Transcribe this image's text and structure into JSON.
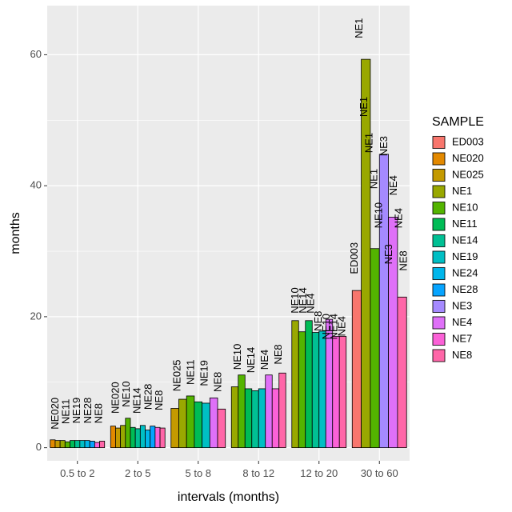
{
  "chart_data": {
    "type": "bar",
    "xlabel": "intervals (months)",
    "ylabel": "months",
    "ylim": [
      -2,
      67.5
    ],
    "y_ticks": [
      0,
      20,
      40,
      60
    ],
    "grid": true,
    "legend_placement": "right",
    "legend_title": "SAMPLE",
    "samples": [
      {
        "name": "ED003",
        "color": "#F8766D"
      },
      {
        "name": "NE020",
        "color": "#E38900"
      },
      {
        "name": "NE025",
        "color": "#C49A00"
      },
      {
        "name": "NE1",
        "color": "#99A800"
      },
      {
        "name": "NE10",
        "color": "#53B400"
      },
      {
        "name": "NE11",
        "color": "#00BC56"
      },
      {
        "name": "NE14",
        "color": "#00C094"
      },
      {
        "name": "NE19",
        "color": "#00BFC4"
      },
      {
        "name": "NE24",
        "color": "#00B6EB"
      },
      {
        "name": "NE28",
        "color": "#06A4FF"
      },
      {
        "name": "NE3",
        "color": "#A58AFF"
      },
      {
        "name": "NE4",
        "color": "#DF70F8"
      },
      {
        "name": "NE7",
        "color": "#FB61D7"
      },
      {
        "name": "NE8",
        "color": "#FF66A8"
      }
    ],
    "categories": [
      {
        "label": "0.5 to 2",
        "bars": [
          {
            "sample": "NE020",
            "value": 1.2
          },
          {
            "sample": "NE025",
            "value": 1.1
          },
          {
            "sample": "NE1",
            "value": 1.1
          },
          {
            "sample": "NE10",
            "value": 0.9
          },
          {
            "sample": "NE11",
            "value": 1.1
          },
          {
            "sample": "NE14",
            "value": 1.1
          },
          {
            "sample": "NE19",
            "value": 1.1
          },
          {
            "sample": "NE24",
            "value": 1.1
          },
          {
            "sample": "NE28",
            "value": 1.0
          },
          {
            "sample": "NE7",
            "value": 0.8
          },
          {
            "sample": "NE8",
            "value": 1.0
          }
        ],
        "labels": [
          {
            "text": "NE020",
            "value": 2.8
          },
          {
            "text": "NE11",
            "value": 3.6
          },
          {
            "text": "NE19",
            "value": 3.7
          },
          {
            "text": "NE28",
            "value": 3.7
          },
          {
            "text": "NE8",
            "value": 3.7
          }
        ]
      },
      {
        "label": "2 to 5",
        "bars": [
          {
            "sample": "NE020",
            "value": 3.3
          },
          {
            "sample": "NE025",
            "value": 3.0
          },
          {
            "sample": "NE1",
            "value": 3.4
          },
          {
            "sample": "NE10",
            "value": 4.5
          },
          {
            "sample": "NE11",
            "value": 3.1
          },
          {
            "sample": "NE14",
            "value": 2.9
          },
          {
            "sample": "NE19",
            "value": 3.4
          },
          {
            "sample": "NE24",
            "value": 2.7
          },
          {
            "sample": "NE28",
            "value": 3.3
          },
          {
            "sample": "NE7",
            "value": 3.1
          },
          {
            "sample": "NE8",
            "value": 3.0
          }
        ],
        "labels": [
          {
            "text": "NE020",
            "value": 5.2
          },
          {
            "text": "NE10",
            "value": 6.2
          },
          {
            "text": "NE14",
            "value": 5.2
          },
          {
            "text": "NE28",
            "value": 5.8
          },
          {
            "text": "NE8",
            "value": 5.7
          }
        ]
      },
      {
        "label": "5 to 8",
        "bars": [
          {
            "sample": "NE025",
            "value": 6.0
          },
          {
            "sample": "NE1",
            "value": 7.4
          },
          {
            "sample": "NE10",
            "value": 7.9
          },
          {
            "sample": "NE11",
            "value": 7.0
          },
          {
            "sample": "NE19",
            "value": 6.8
          },
          {
            "sample": "NE4",
            "value": 7.6
          },
          {
            "sample": "NE8",
            "value": 5.9
          }
        ],
        "labels": [
          {
            "text": "NE025",
            "value": 8.6
          },
          {
            "text": "NE11",
            "value": 9.6
          },
          {
            "text": "NE19",
            "value": 9.4
          },
          {
            "text": "NE8",
            "value": 8.5
          }
        ]
      },
      {
        "label": "8 to 12",
        "bars": [
          {
            "sample": "NE1",
            "value": 9.3
          },
          {
            "sample": "NE10",
            "value": 11.1
          },
          {
            "sample": "NE11",
            "value": 9.0
          },
          {
            "sample": "NE14",
            "value": 8.7
          },
          {
            "sample": "NE19",
            "value": 9.0
          },
          {
            "sample": "NE4",
            "value": 11.1
          },
          {
            "sample": "NE7",
            "value": 9.0
          },
          {
            "sample": "NE8",
            "value": 11.4
          }
        ],
        "labels": [
          {
            "text": "NE10",
            "value": 11.9
          },
          {
            "text": "NE14",
            "value": 11.4
          },
          {
            "text": "NE4",
            "value": 11.9
          },
          {
            "text": "NE8",
            "value": 12.7
          }
        ]
      },
      {
        "label": "12 to 20",
        "bars": [
          {
            "sample": "NE1",
            "value": 19.4
          },
          {
            "sample": "NE10",
            "value": 17.7
          },
          {
            "sample": "NE11",
            "value": 19.4
          },
          {
            "sample": "NE14",
            "value": 17.6
          },
          {
            "sample": "NE19",
            "value": 17.8
          },
          {
            "sample": "NE4",
            "value": 19.6
          },
          {
            "sample": "NE7",
            "value": 17.0
          },
          {
            "sample": "NE8",
            "value": 17.0
          }
        ],
        "labels": [
          {
            "text": "NE10",
            "value": 20.5
          },
          {
            "text": "NE14",
            "value": 20.5
          },
          {
            "text": "NE4",
            "value": 20.5
          },
          {
            "text": "NE8",
            "value": 17.8
          },
          {
            "text": "NE10",
            "value": 16.5
          },
          {
            "text": "NE14",
            "value": 16.5
          },
          {
            "text": "NE4",
            "value": 17.0
          }
        ]
      },
      {
        "label": "30 to 60",
        "bars": [
          {
            "sample": "ED003",
            "value": 24.0
          },
          {
            "sample": "NE1",
            "value": 59.3
          },
          {
            "sample": "NE10",
            "value": 30.4
          },
          {
            "sample": "NE3",
            "value": 44.8
          },
          {
            "sample": "NE4",
            "value": 35.2
          },
          {
            "sample": "NE8",
            "value": 23.0
          }
        ],
        "labels": [
          {
            "text": "ED003",
            "value": 26.5
          },
          {
            "text": "NE1",
            "value": 62.5
          },
          {
            "text": "NE1",
            "value": 50.5
          },
          {
            "text": "NE1",
            "value": 45.0
          },
          {
            "text": "NE1",
            "value": 39.5
          },
          {
            "text": "NE10",
            "value": 33.5
          },
          {
            "text": "NE3",
            "value": 44.5
          },
          {
            "text": "NE3",
            "value": 28.0
          },
          {
            "text": "NE4",
            "value": 38.5
          },
          {
            "text": "NE4",
            "value": 33.5
          },
          {
            "text": "NE8",
            "value": 27.0
          }
        ]
      }
    ]
  }
}
